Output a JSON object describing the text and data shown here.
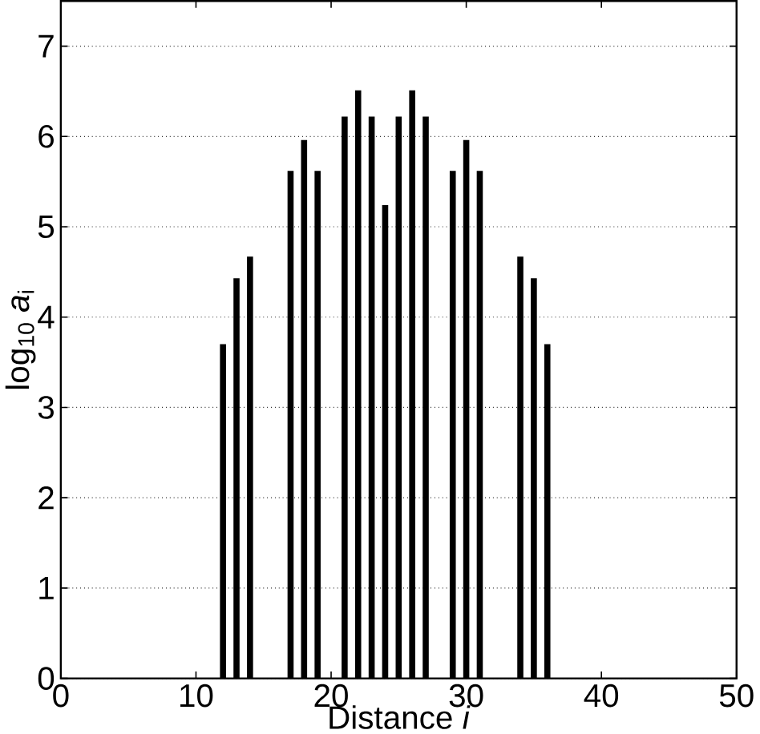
{
  "chart_data": {
    "type": "bar",
    "xlabel": "Distance *i*",
    "ylabel": "log$_{10}$ *a*$_{i}$",
    "x": [
      12,
      13,
      14,
      17,
      18,
      19,
      21,
      22,
      23,
      24,
      25,
      26,
      27,
      29,
      30,
      31,
      34,
      35,
      36
    ],
    "values": [
      3.7,
      4.43,
      4.67,
      5.62,
      5.96,
      5.62,
      6.22,
      6.51,
      6.22,
      5.24,
      6.22,
      6.51,
      6.22,
      5.62,
      5.96,
      5.62,
      4.67,
      4.43,
      3.7
    ],
    "color": "#000000",
    "xlim": [
      0,
      50
    ],
    "xticks": [
      0,
      10,
      20,
      30,
      40,
      50
    ],
    "ylim": [
      0,
      7.5
    ],
    "yticks": [
      0,
      1,
      2,
      3,
      4,
      5,
      6,
      7
    ],
    "grid": "y"
  }
}
